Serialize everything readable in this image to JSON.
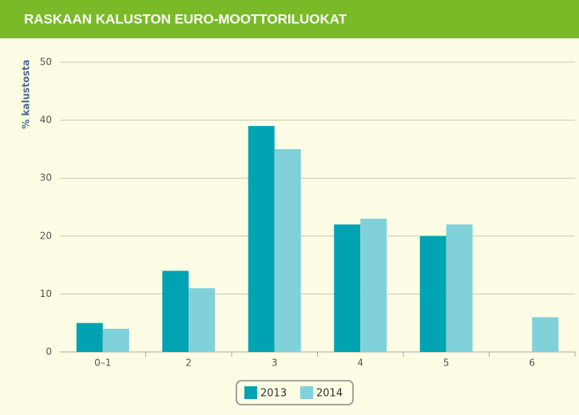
{
  "chart_data": {
    "type": "bar",
    "title": "RASKAAN KALUSTON EURO-MOOTTORILUOKAT",
    "y_label": "% kalustosta",
    "categories": [
      "0–1",
      "2",
      "3",
      "4",
      "5",
      "6"
    ],
    "series": [
      {
        "name": "2013",
        "color": "#00a3b1",
        "values": [
          5,
          14,
          39,
          22,
          20,
          null
        ]
      },
      {
        "name": "2014",
        "color": "#80d1da",
        "values": [
          4,
          11,
          35,
          23,
          22,
          6
        ]
      }
    ],
    "ylim": [
      0,
      50
    ],
    "yticks": [
      0,
      10,
      20,
      30,
      40,
      50
    ],
    "grid": true,
    "legend": "bottom"
  }
}
